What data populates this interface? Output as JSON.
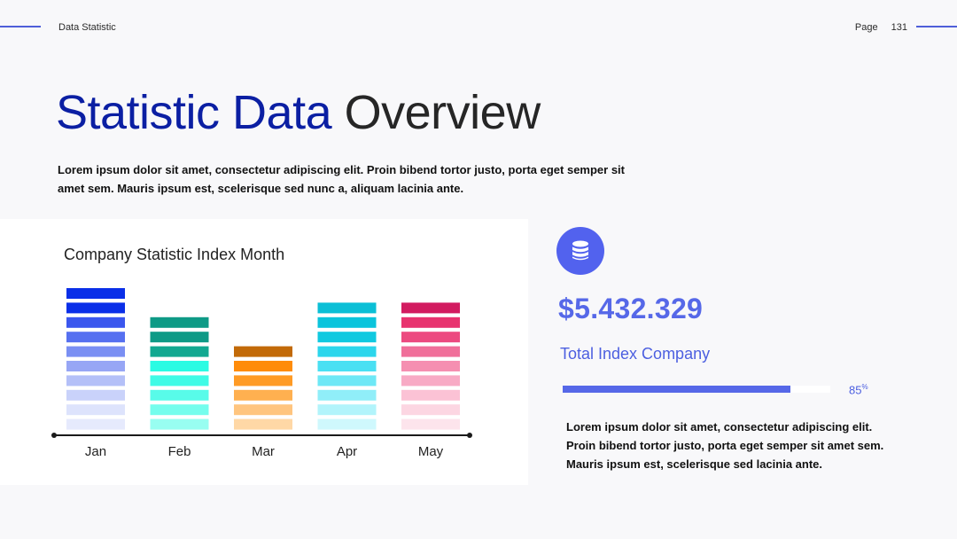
{
  "header": {
    "label": "Data Statistic",
    "page_label": "Page",
    "page_number": "131"
  },
  "title": {
    "part1": "Statistic Data",
    "part2": "Overview"
  },
  "intro_text": "Lorem ipsum dolor sit amet, consectetur adipiscing elit. Proin bibend tortor justo, porta eget semper sit amet sem. Mauris ipsum est, scelerisque sed nunc a, aliquam lacinia ante.",
  "chart_data": {
    "type": "bar",
    "title": "Company Statistic Index Month",
    "categories": [
      "Jan",
      "Feb",
      "Mar",
      "Apr",
      "May"
    ],
    "values": [
      10,
      8,
      6,
      9,
      9
    ],
    "ylim": [
      0,
      10
    ],
    "grid": false,
    "legend": "none",
    "palettes": [
      [
        "#0a2fe8",
        "#0a2fe8",
        "#3b57ee",
        "#5670f0",
        "#7a8ff3",
        "#97a6f5",
        "#b4c0f8",
        "#c9d2fa",
        "#dde3fc",
        "#e6eafd"
      ],
      [
        "#0e9a86",
        "#0e9a86",
        "#12a891",
        "#2bfbe3",
        "#3ffbe6",
        "#58fbe9",
        "#74fded",
        "#98fef1",
        "#bffef6"
      ],
      [
        "#c26a08",
        "#ff8c0a",
        "#ff9b25",
        "#ffb050",
        "#ffc57f",
        "#ffd8a6",
        "#ffe6c6"
      ],
      [
        "#0bbfd6",
        "#0bc4dc",
        "#10c9e0",
        "#2cd6ec",
        "#4ae0f3",
        "#6ee8f6",
        "#90eef9",
        "#b2f4fb",
        "#cff8fd"
      ],
      [
        "#d21b60",
        "#e8336f",
        "#ec4a80",
        "#f06f9a",
        "#f58fb1",
        "#f8aac5",
        "#fbc2d5",
        "#fcd6e2",
        "#fde4ec"
      ]
    ]
  },
  "stats": {
    "value": "$5.432.329",
    "label": "Total Index Company",
    "progress_percent": 85,
    "progress_text": "85",
    "progress_suffix": "%",
    "description": "Lorem ipsum dolor sit amet, consectetur adipiscing elit. Proin bibend tortor justo, porta eget semper sit amet sem. Mauris ipsum est, scelerisque sed lacinia ante.",
    "icon": "database-icon",
    "accent": "#5668e8"
  }
}
